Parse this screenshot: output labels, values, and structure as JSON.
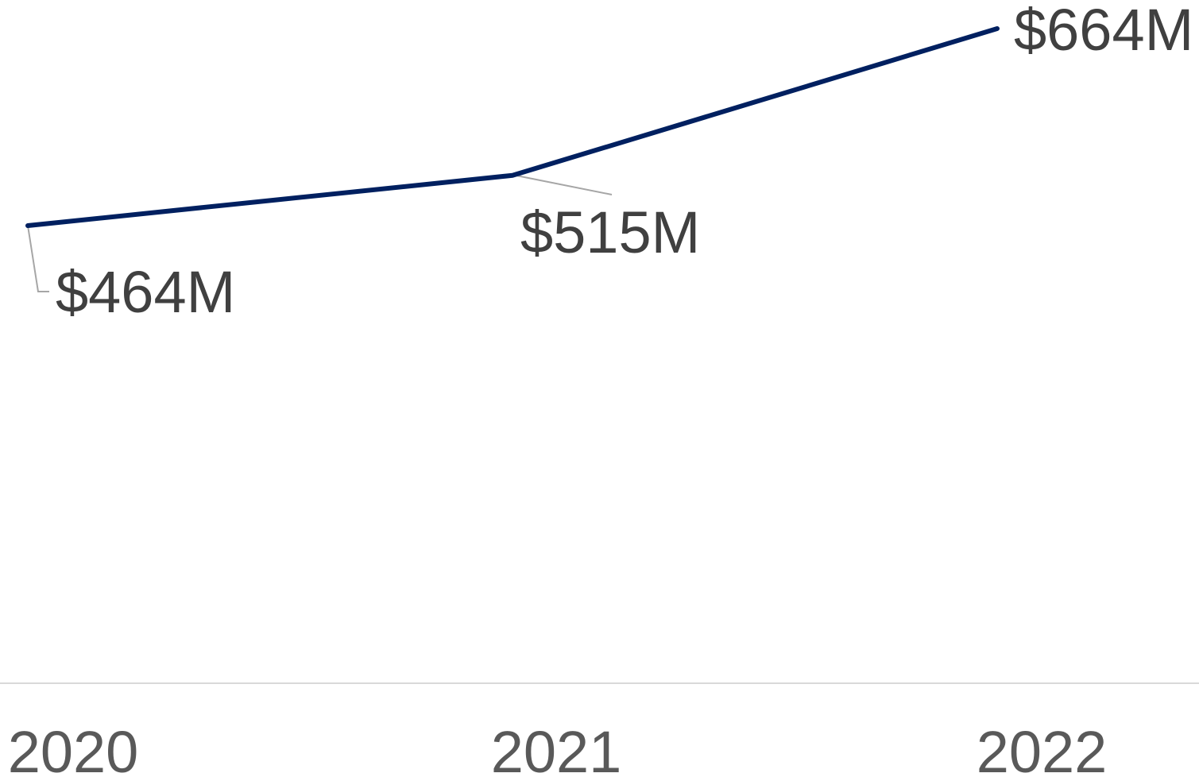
{
  "chart_data": {
    "type": "line",
    "categories": [
      "2020",
      "2021",
      "2022"
    ],
    "series": [
      {
        "values": [
          464,
          515,
          664
        ],
        "labels": [
          "$464M",
          "$515M",
          "$664M"
        ],
        "color": "#002060"
      }
    ],
    "xlabel": "",
    "ylabel": "",
    "ylim": [
      0,
      700
    ],
    "grid": false,
    "legend": "none",
    "colors": {
      "line": "#002060",
      "label_text": "#404040",
      "tick_text": "#595959",
      "axis": "#d9d9d9",
      "leader": "#a6a6a6"
    }
  }
}
